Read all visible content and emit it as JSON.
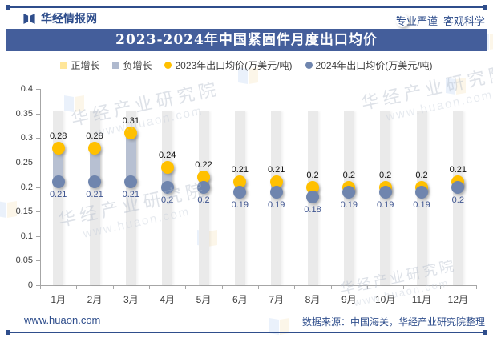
{
  "header": {
    "brand": "华经情报网",
    "slogan_left": "专业严谨",
    "slogan_separator": "●",
    "slogan_right": "客观科学"
  },
  "title": "2023-2024年中国紧固件月度出口均价",
  "legend": {
    "items": [
      {
        "label": "正增长",
        "marker": "square",
        "color": "#FFE699"
      },
      {
        "label": "负增长",
        "marker": "square",
        "color": "#AFB9CE"
      },
      {
        "label": "2023年出口均价(万美元/吨)",
        "marker": "circle",
        "color": "#FFC000"
      },
      {
        "label": "2024年出口均价(万美元/吨)",
        "marker": "circle",
        "color": "#6F85AE"
      }
    ]
  },
  "chart_data": {
    "type": "scatter",
    "subtype": "dot-range-columns",
    "title": "2023-2024年中国紧固件月度出口均价",
    "categories": [
      "1月",
      "2月",
      "3月",
      "4月",
      "5月",
      "6月",
      "7月",
      "8月",
      "9月",
      "10月",
      "11月",
      "12月"
    ],
    "series": [
      {
        "name": "2023年出口均价(万美元/吨)",
        "color": "#FFC000",
        "values": [
          0.28,
          0.28,
          0.31,
          0.24,
          0.22,
          0.21,
          0.21,
          0.2,
          0.2,
          0.2,
          0.2,
          0.21
        ],
        "labels": [
          "0.28",
          "0.28",
          "0.31",
          "0.24",
          "0.22",
          "0.21",
          "0.21",
          "0.2",
          "0.2",
          "0.2",
          "0.2",
          "0.21"
        ]
      },
      {
        "name": "2024年出口均价(万美元/吨)",
        "color": "#6F85AE",
        "values": [
          0.21,
          0.21,
          0.21,
          0.2,
          0.2,
          0.19,
          0.19,
          0.18,
          0.19,
          0.19,
          0.19,
          0.2
        ],
        "labels": [
          "0.21",
          "0.21",
          "0.21",
          "0.2",
          "0.2",
          "0.19",
          "0.19",
          "0.18",
          "0.19",
          "0.19",
          "0.19",
          "0.2"
        ]
      }
    ],
    "xlabel": "",
    "ylabel": "",
    "ylim": [
      0,
      0.4
    ],
    "ytick_labels": [
      "0",
      "0.05",
      "0.1",
      "0.15",
      "0.2",
      "0.25",
      "0.3",
      "0.35",
      "0.4"
    ],
    "grid": false,
    "legend_position": "top",
    "background_column_top": 0.355,
    "background_column_color": "#EAEAEA",
    "range_band_color_negative": "#AFB9CE",
    "range_band_color_positive": "#FFE699"
  },
  "watermark": {
    "line1": "华经产业研究院",
    "line2": "www.huaon.com"
  },
  "footer": {
    "left": "www.huaon.com",
    "right": "数据来源：中国海关，华经产业研究院整理"
  },
  "colors": {
    "accent": "#2F4E8C",
    "title_bar_bg": "#445E9B",
    "axis": "#A6A6A6",
    "label_2023": "#111111",
    "label_2024": "#3F5590"
  }
}
